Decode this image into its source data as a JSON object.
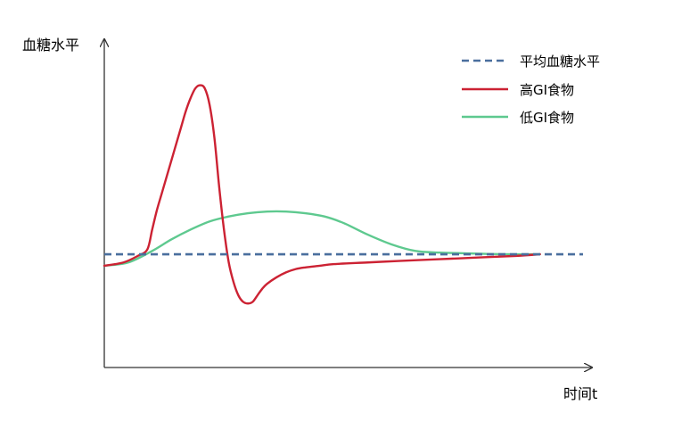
{
  "chart_data": {
    "type": "line",
    "title": "",
    "ylabel": "血糖水平",
    "xlabel": "时间t",
    "xlim": [
      0,
      100
    ],
    "ylim": [
      0,
      100
    ],
    "grid": false,
    "legend_position": "top-right",
    "series": [
      {
        "name": "平均血糖水平",
        "style": "dashed",
        "color": "#4a6f9e",
        "x": [
          0,
          100
        ],
        "y": [
          34.5,
          34.5
        ]
      },
      {
        "name": "高GI食物",
        "style": "solid",
        "color": "#cc2233",
        "x": [
          0,
          4,
          7,
          9,
          10,
          11,
          12,
          14,
          16,
          17,
          18,
          19,
          20,
          21,
          22,
          23,
          24,
          25,
          26,
          27,
          28,
          29,
          30,
          31,
          32,
          33,
          34,
          36,
          38,
          40,
          42,
          45,
          48,
          55,
          62,
          70,
          78,
          86,
          91
        ],
        "y": [
          31,
          32,
          34,
          36,
          42,
          48,
          53,
          63,
          73,
          78,
          82,
          85,
          86,
          85,
          80,
          70,
          55,
          42,
          32,
          26,
          22,
          20,
          19.5,
          20,
          22,
          24,
          25.5,
          27.5,
          29,
          30,
          30.5,
          31,
          31.5,
          32,
          32.5,
          33,
          33.5,
          34,
          34.5
        ]
      },
      {
        "name": "低GI食物",
        "style": "solid",
        "color": "#5ec98f",
        "x": [
          0,
          5,
          10,
          14,
          18,
          22,
          26,
          30,
          34,
          38,
          42,
          46,
          50,
          55,
          60,
          65,
          70,
          75,
          80,
          86,
          91
        ],
        "y": [
          31,
          32,
          35.5,
          39,
          42,
          44.5,
          46,
          47,
          47.5,
          47.5,
          47,
          46,
          44,
          40.5,
          37.5,
          35.5,
          35,
          34.8,
          34.6,
          34.5,
          34.5
        ]
      }
    ]
  }
}
